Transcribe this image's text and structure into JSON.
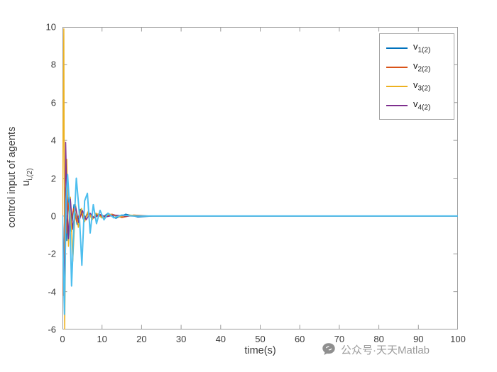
{
  "chart_data": {
    "type": "line",
    "title": "",
    "xlabel": "time(s)",
    "ylabel": "control input of agents",
    "ylabel_sub_base": "u",
    "ylabel_sub": "i,(2)",
    "xlim": [
      0,
      100
    ],
    "ylim": [
      -6,
      10
    ],
    "xticks": [
      0,
      10,
      20,
      30,
      40,
      50,
      60,
      70,
      80,
      90,
      100
    ],
    "yticks": [
      -6,
      -4,
      -2,
      0,
      2,
      4,
      6,
      8,
      10
    ],
    "grid": false,
    "legend_position": "top-right",
    "legend": [
      {
        "base": "v",
        "sub": "1(2)",
        "color": "#0072BD"
      },
      {
        "base": "v",
        "sub": "2(2)",
        "color": "#D95319"
      },
      {
        "base": "v",
        "sub": "3(2)",
        "color": "#EDB120"
      },
      {
        "base": "v",
        "sub": "4(2)",
        "color": "#7E2F8E"
      }
    ],
    "series": [
      {
        "name": "v_1(2)",
        "color": "#0072BD",
        "width": 1.5,
        "x": [
          0,
          0.3,
          0.7,
          1.1,
          1.6,
          2.2,
          2.9,
          3.7,
          4.5,
          5.4,
          6.4,
          7.5,
          8.7,
          10,
          11.5,
          13.5,
          16,
          19,
          23,
          30,
          60,
          100
        ],
        "y": [
          0,
          -3.5,
          1.5,
          -1.3,
          1.0,
          -0.8,
          0.6,
          -0.45,
          0.35,
          -0.25,
          0.2,
          -0.15,
          0.12,
          -0.1,
          0.15,
          -0.12,
          0.1,
          -0.05,
          0,
          0,
          0,
          0
        ]
      },
      {
        "name": "v_2(2)",
        "color": "#D95319",
        "width": 1.5,
        "x": [
          0,
          0.25,
          0.6,
          1.0,
          1.5,
          2.1,
          2.8,
          3.6,
          4.5,
          5.5,
          6.6,
          7.8,
          9,
          10.5,
          12.5,
          15,
          18,
          22,
          28,
          40,
          100
        ],
        "y": [
          0,
          -4.2,
          1.2,
          -0.9,
          0.7,
          -0.5,
          0.4,
          -0.3,
          0.25,
          -0.2,
          0.15,
          -0.12,
          0.1,
          -0.08,
          0.1,
          -0.08,
          0.05,
          0,
          0,
          0,
          0
        ]
      },
      {
        "name": "v_3(2)",
        "color": "#EDB120",
        "width": 1.5,
        "x": [
          0,
          0.15,
          0.35,
          0.55,
          0.8,
          1.1,
          1.5,
          2.0,
          2.6,
          3.3,
          4.0,
          4.8,
          5.6,
          6.5,
          7.5,
          8.5,
          10,
          12,
          14,
          17,
          20,
          25,
          35,
          60,
          100
        ],
        "y": [
          0,
          4,
          9.9,
          -6.0,
          -1.0,
          3.0,
          -1.6,
          1.0,
          -2.4,
          0.6,
          -0.6,
          0.4,
          -0.3,
          0.25,
          -0.2,
          0.15,
          -0.1,
          0.1,
          -0.05,
          0.05,
          0,
          0,
          0,
          0,
          0
        ]
      },
      {
        "name": "v_4(2)",
        "color": "#7E2F8E",
        "width": 1.5,
        "x": [
          0,
          0.2,
          0.5,
          0.8,
          1.1,
          1.5,
          2.0,
          2.6,
          3.3,
          4.1,
          5.0,
          6.0,
          7.0,
          8.0,
          9.5,
          11,
          13,
          16,
          20,
          30,
          60,
          100
        ],
        "y": [
          0,
          -1.5,
          -4.5,
          3.9,
          1.0,
          -1.2,
          0.9,
          -0.7,
          0.5,
          -0.35,
          0.3,
          -0.2,
          0.15,
          -0.1,
          0.08,
          -0.05,
          0.05,
          0,
          0,
          0,
          0,
          0
        ]
      },
      {
        "name": "",
        "color": "#4DBEEE",
        "width": 2,
        "x": [
          0,
          0.2,
          0.5,
          0.9,
          1.3,
          1.8,
          2.3,
          2.9,
          3.5,
          4.2,
          4.9,
          5.6,
          6.3,
          7.0,
          7.8,
          8.6,
          9.5,
          10.5,
          11.5,
          13,
          15,
          18,
          22,
          30,
          50,
          100
        ],
        "y": [
          0,
          -2.5,
          -5.2,
          0.8,
          2.2,
          0.5,
          -3.7,
          -0.5,
          2.0,
          0.3,
          -2.6,
          0.8,
          1.2,
          -0.9,
          0.6,
          -0.4,
          0.3,
          -0.2,
          0.15,
          -0.1,
          0.05,
          0,
          0,
          0,
          0,
          0
        ]
      }
    ]
  },
  "watermark": {
    "icon": "chat-bubble-icon",
    "text": "公众号·天天Matlab"
  }
}
